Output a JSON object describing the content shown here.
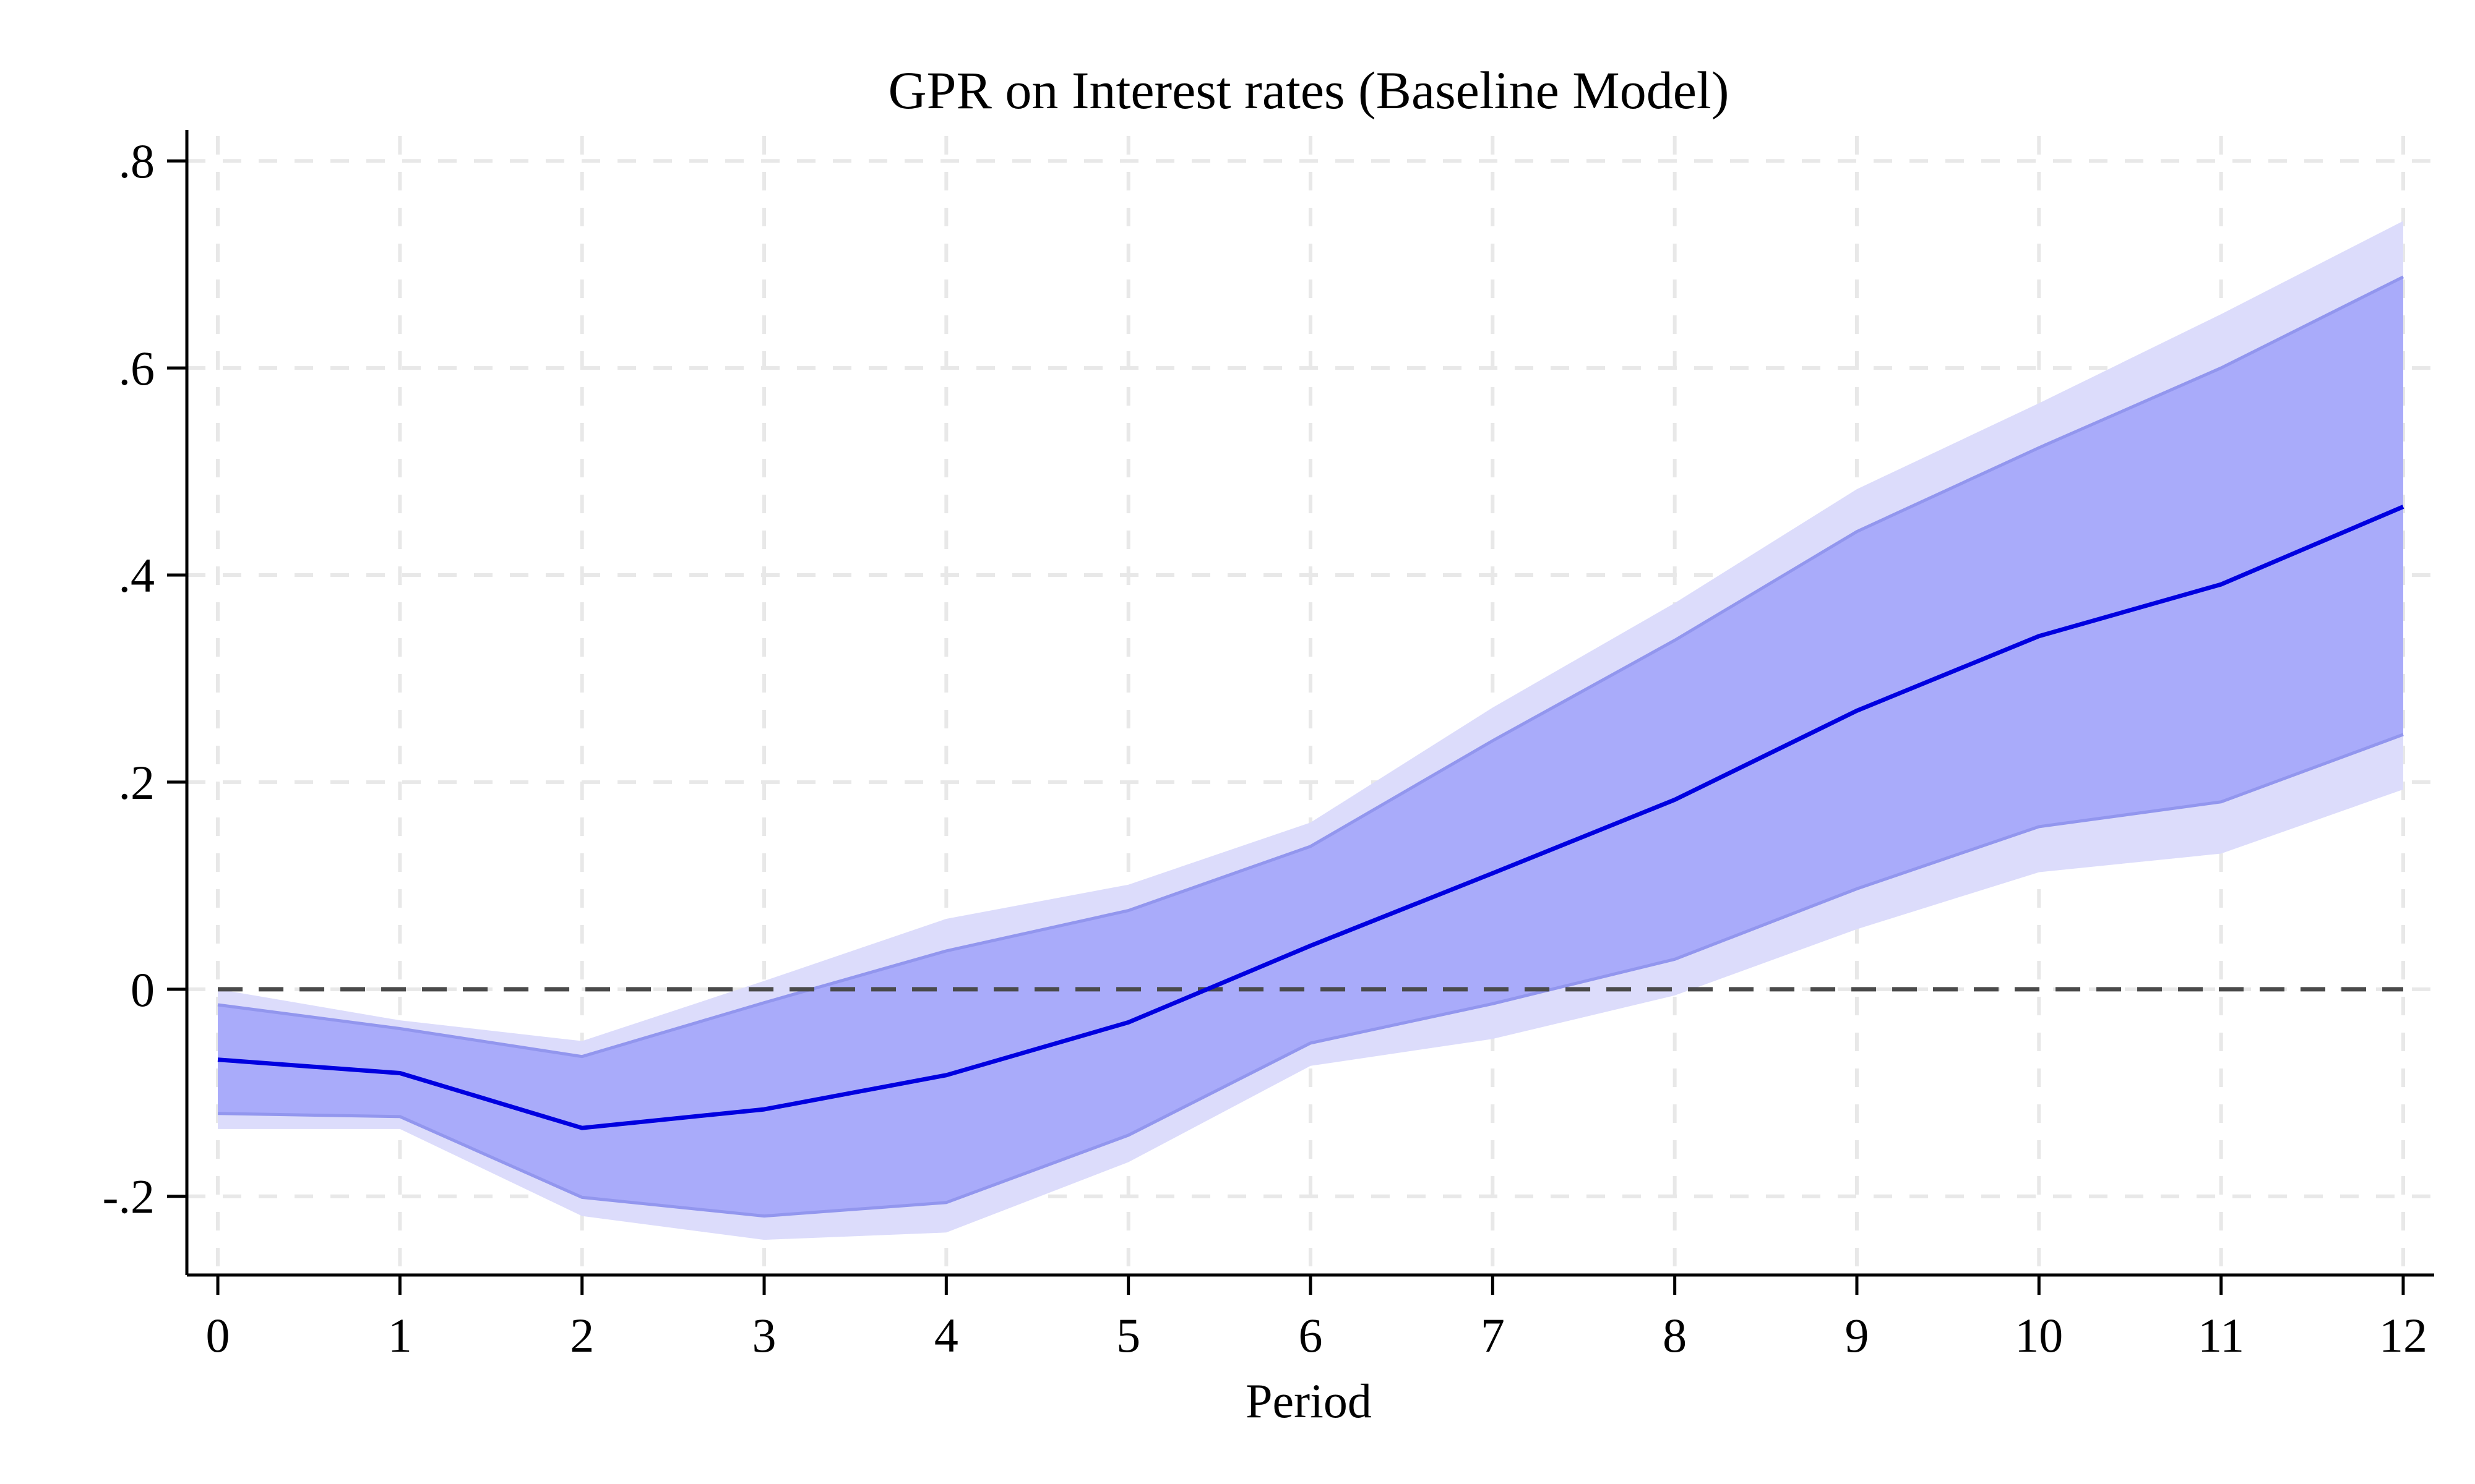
{
  "chart_data": {
    "type": "line",
    "title": "GPR on Interest rates (Baseline Model)",
    "xlabel": "Period",
    "ylabel": "",
    "x": [
      0,
      1,
      2,
      3,
      4,
      5,
      6,
      7,
      8,
      9,
      10,
      11,
      12
    ],
    "xticks": [
      "0",
      "1",
      "2",
      "3",
      "4",
      "5",
      "6",
      "7",
      "8",
      "9",
      "10",
      "11",
      "12"
    ],
    "yticks": [
      {
        "value": -0.2,
        "label": "-.2"
      },
      {
        "value": 0,
        "label": "0"
      },
      {
        "value": 0.2,
        "label": ".2"
      },
      {
        "value": 0.4,
        "label": ".4"
      },
      {
        "value": 0.6,
        "label": ".6"
      },
      {
        "value": 0.8,
        "label": ".8"
      }
    ],
    "xlim": [
      -0.17,
      12.17
    ],
    "ylim": [
      -0.276,
      0.83
    ],
    "grid": true,
    "reference_line": {
      "value": 0,
      "style": "dashed"
    },
    "series": [
      {
        "role": "point-estimate",
        "values": [
          -0.068,
          -0.081,
          -0.134,
          -0.116,
          -0.083,
          -0.032,
          0.042,
          0.112,
          0.183,
          0.269,
          0.341,
          0.391,
          0.466
        ]
      }
    ],
    "bands": [
      {
        "role": "outer-interval",
        "lower": [
          -0.135,
          -0.135,
          -0.219,
          -0.242,
          -0.235,
          -0.167,
          -0.074,
          -0.048,
          -0.006,
          0.058,
          0.113,
          0.131,
          0.193
        ],
        "upper": [
          0.0,
          -0.03,
          -0.05,
          0.008,
          0.068,
          0.101,
          0.161,
          0.272,
          0.373,
          0.483,
          0.566,
          0.652,
          0.742
        ]
      },
      {
        "role": "inner-interval",
        "lower": [
          -0.12,
          -0.123,
          -0.201,
          -0.219,
          -0.206,
          -0.141,
          -0.052,
          -0.014,
          0.029,
          0.097,
          0.157,
          0.181,
          0.246
        ],
        "upper": [
          -0.015,
          -0.038,
          -0.065,
          -0.013,
          0.037,
          0.076,
          0.138,
          0.24,
          0.337,
          0.442,
          0.523,
          0.6,
          0.688
        ]
      }
    ],
    "colors": {
      "line": "#0000e0",
      "inner_band": "#a9abfa",
      "outer_band": "#dcdcfb",
      "band_edge": "#9296ee",
      "grid": "#e8e8e8",
      "zero_line": "#4a4a4a",
      "axis": "#000000"
    }
  }
}
